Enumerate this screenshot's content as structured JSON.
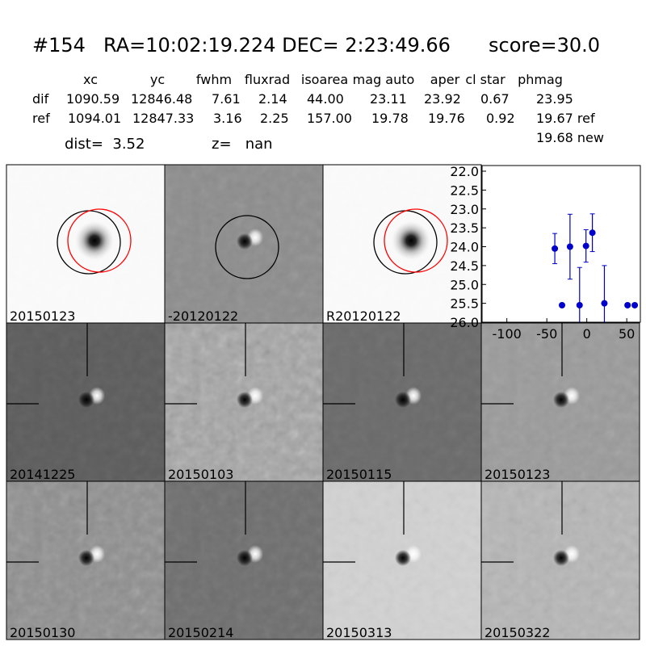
{
  "header": {
    "id": "#154",
    "coords": "RA=10:02:19.224 DEC= 2:23:49.66",
    "score": "score=30.0"
  },
  "table": {
    "columns": [
      "xc",
      "yc",
      "fwhm",
      "fluxrad",
      "isoarea",
      "mag auto",
      "aper",
      "cl star",
      "phmag"
    ],
    "rows": [
      {
        "label": "dif",
        "cells": [
          "1090.59",
          "12846.48",
          "7.61",
          "2.14",
          "44.00",
          "23.11",
          "23.92",
          "0.67",
          "23.95"
        ]
      },
      {
        "label": "ref",
        "cells": [
          "1094.01",
          "12847.33",
          "3.16",
          "2.25",
          "157.00",
          "19.78",
          "19.76",
          "0.92",
          "19.67 ref"
        ]
      }
    ],
    "extra": "19.68 new",
    "dist": "dist=  3.52",
    "z": "z=   nan"
  },
  "panels": [
    {
      "label": "20150123"
    },
    {
      "label": "-20120122"
    },
    {
      "label": "R20120122"
    },
    {
      "label": "20141225"
    },
    {
      "label": "20150103"
    },
    {
      "label": "20150115"
    },
    {
      "label": "20150123",
      "color": "#ff0000"
    },
    {
      "label": "20150130"
    },
    {
      "label": "20150214"
    },
    {
      "label": "20150313"
    },
    {
      "label": "20150322"
    }
  ],
  "chart_data": {
    "type": "errorbar",
    "color": "#0000cc",
    "x": [
      -40,
      -31,
      -21,
      -9,
      -1,
      7,
      22,
      51,
      60
    ],
    "values": [
      24.05,
      25.55,
      24.0,
      25.55,
      23.98,
      23.63,
      25.5,
      25.55,
      25.55
    ],
    "errors": [
      0.4,
      0.05,
      0.86,
      1.0,
      0.43,
      0.5,
      1.0,
      0.05,
      0.05
    ],
    "xlim": [
      -131,
      67
    ],
    "ylim": [
      26.0,
      21.85
    ],
    "xticks": [
      -100,
      -50,
      0,
      50
    ],
    "yticks": [
      {
        "value": 22,
        "label": "22.0"
      },
      {
        "value": 22.5,
        "label": "22.5"
      },
      {
        "value": 23,
        "label": "23.0"
      },
      {
        "value": 23.5,
        "label": "23.5"
      },
      {
        "value": 24,
        "label": "24.0"
      },
      {
        "value": 24.5,
        "label": "24.5"
      },
      {
        "value": 25,
        "label": "25.0"
      },
      {
        "value": 25.5,
        "label": "25.5"
      },
      {
        "value": 26,
        "label": "26.0"
      }
    ]
  }
}
